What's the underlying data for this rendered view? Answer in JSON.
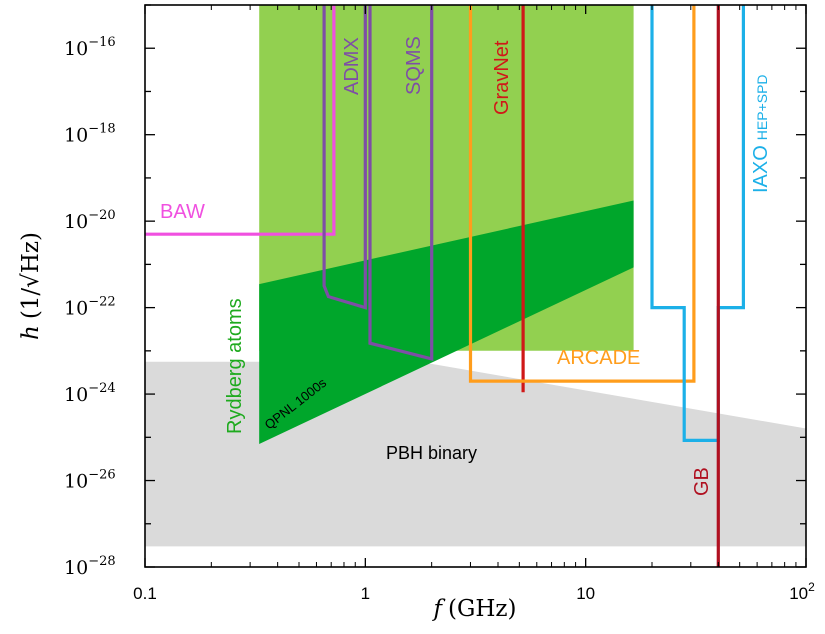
{
  "chart_data": {
    "type": "line",
    "x_scale": "log",
    "y_scale": "log",
    "xlim": [
      0.1,
      100
    ],
    "ylim": [
      1e-28,
      1e-15
    ],
    "grid": false,
    "xlabel": {
      "sym": "f",
      "unit": "(GHz)"
    },
    "ylabel": {
      "sym": "h",
      "unit": "(1/√Hz)"
    },
    "x_ticks": [
      {
        "value": 0.1,
        "label": "0.1"
      },
      {
        "value": 1,
        "label": "1"
      },
      {
        "value": 10,
        "label": "10"
      },
      {
        "value": 100,
        "label": "10",
        "sup": "2"
      }
    ],
    "y_ticks": [
      {
        "value": 1e-16,
        "base": "10",
        "exp": "−16"
      },
      {
        "value": 1e-18,
        "base": "10",
        "exp": "−18"
      },
      {
        "value": 1e-20,
        "base": "10",
        "exp": "−20"
      },
      {
        "value": 1e-22,
        "base": "10",
        "exp": "−22"
      },
      {
        "value": 1e-24,
        "base": "10",
        "exp": "−24"
      },
      {
        "value": 1e-26,
        "base": "10",
        "exp": "−26"
      },
      {
        "value": 1e-28,
        "base": "10",
        "exp": "−28"
      }
    ],
    "regions": [
      {
        "name": "PBH binary",
        "color": "#dadada",
        "points": [
          [
            0.1,
            3e-28
          ],
          [
            0.1,
            5.6e-24
          ],
          [
            0.33,
            5.6e-24
          ],
          [
            2.0,
            5e-24
          ],
          [
            100,
            1.6e-25
          ],
          [
            100,
            3e-28
          ]
        ]
      },
      {
        "name": "Rydberg atoms (light)",
        "color": "#92d050",
        "points": [
          [
            0.33,
            1e-15
          ],
          [
            16.5,
            1e-15
          ],
          [
            16.5,
            1e-23
          ],
          [
            0.33,
            1e-23
          ]
        ]
      },
      {
        "name": "QPNL 1000s",
        "color": "#00a62b",
        "points": [
          [
            0.33,
            3.5e-22
          ],
          [
            16.5,
            3e-20
          ],
          [
            16.5,
            8.5e-22
          ],
          [
            0.33,
            7e-26
          ]
        ]
      }
    ],
    "series": [
      {
        "name": "BAW",
        "color": "#f050e0",
        "points": [
          [
            0.1,
            5e-21
          ],
          [
            0.72,
            5e-21
          ],
          [
            0.72,
            1e-15
          ]
        ]
      },
      {
        "name": "ADMX",
        "color": "#7e4ea6",
        "points": [
          [
            0.65,
            1e-15
          ],
          [
            0.65,
            3.2e-22
          ],
          [
            0.68,
            1.8e-22
          ],
          [
            1.0,
            1e-22
          ],
          [
            1.0,
            1e-15
          ]
        ]
      },
      {
        "name": "SQMS",
        "color": "#7e4ea6",
        "points": [
          [
            1.05,
            1e-15
          ],
          [
            1.05,
            1.5e-23
          ],
          [
            2.0,
            6.5e-24
          ],
          [
            2.0,
            1e-15
          ]
        ]
      },
      {
        "name": "GravNet",
        "color": "#d01818",
        "points": [
          [
            5.2,
            1e-15
          ],
          [
            5.2,
            1.1e-24
          ]
        ]
      },
      {
        "name": "ARCADE",
        "color": "#ff9d1c",
        "points": [
          [
            3.0,
            1e-15
          ],
          [
            3.0,
            2e-24
          ],
          [
            31.0,
            2e-24
          ],
          [
            31.0,
            1e-15
          ]
        ]
      },
      {
        "name": "IAXO HEP+SPD",
        "color": "#1cb0e8",
        "points": [
          [
            20.0,
            1e-15
          ],
          [
            20.0,
            1e-22
          ],
          [
            28.0,
            1e-22
          ],
          [
            28.0,
            8.5e-26
          ],
          [
            40.0,
            8.5e-26
          ],
          [
            40.0,
            1e-22
          ],
          [
            52.0,
            1e-22
          ],
          [
            52.0,
            1e-15
          ]
        ]
      },
      {
        "name": "GB",
        "color": "#b01020",
        "points": [
          [
            40.0,
            1e-15
          ],
          [
            40.0,
            1e-28
          ]
        ]
      }
    ],
    "labels": {
      "baw": "BAW",
      "admx": "ADMX",
      "sqms": "SQMS",
      "gravnet": "GravNet",
      "arcade": "ARCADE",
      "iaxo": "IAXO",
      "iaxo_sub": "HEP+SPD",
      "gb": "GB",
      "rydberg": "Rydberg atoms",
      "qpnl": "QPNL 1000s",
      "pbh": "PBH binary"
    }
  }
}
